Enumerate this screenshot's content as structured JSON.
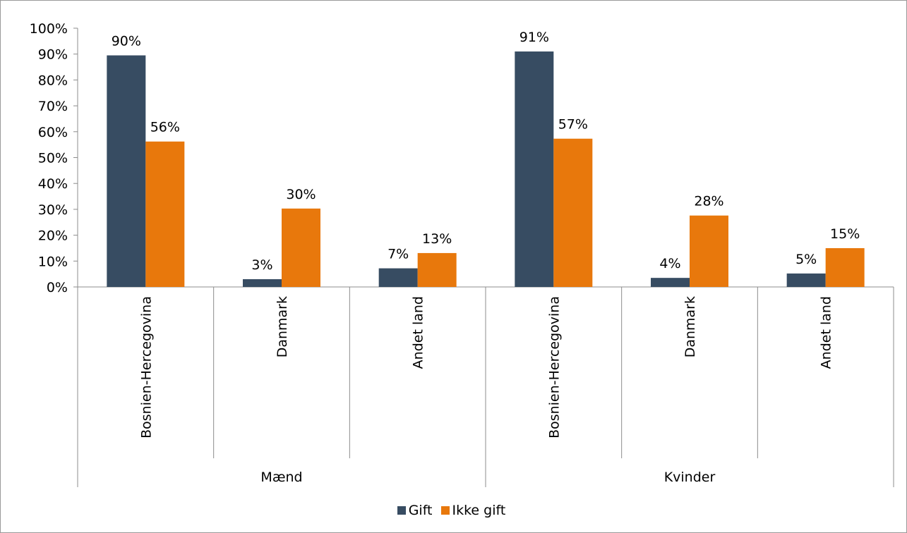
{
  "chart_data": {
    "type": "bar",
    "groups": [
      {
        "name": "Mænd",
        "categories": [
          "Bosnien-Hercegovina",
          "Danmark",
          "Andet land"
        ]
      },
      {
        "name": "Kvinder",
        "categories": [
          "Bosnien-Hercegovina",
          "Danmark",
          "Andet land"
        ]
      }
    ],
    "categories": [
      "Bosnien-Hercegovina",
      "Danmark",
      "Andet land",
      "Bosnien-Hercegovina",
      "Danmark",
      "Andet land"
    ],
    "series": [
      {
        "name": "Gift",
        "color": "#374c62",
        "values": [
          89.5,
          3,
          7.2,
          91,
          3.5,
          5.2
        ],
        "labels": [
          "90%",
          "3%",
          "7%",
          "91%",
          "4%",
          "5%"
        ]
      },
      {
        "name": "Ikke gift",
        "color": "#e8780c",
        "values": [
          56.2,
          30.3,
          13.1,
          57.3,
          27.6,
          15
        ],
        "labels": [
          "56%",
          "30%",
          "13%",
          "57%",
          "28%",
          "15%"
        ]
      }
    ],
    "ylim": [
      0,
      100
    ],
    "yticks": [
      "0%",
      "10%",
      "20%",
      "30%",
      "40%",
      "50%",
      "60%",
      "70%",
      "80%",
      "90%",
      "100%"
    ],
    "grid": false,
    "legend_position": "bottom"
  }
}
